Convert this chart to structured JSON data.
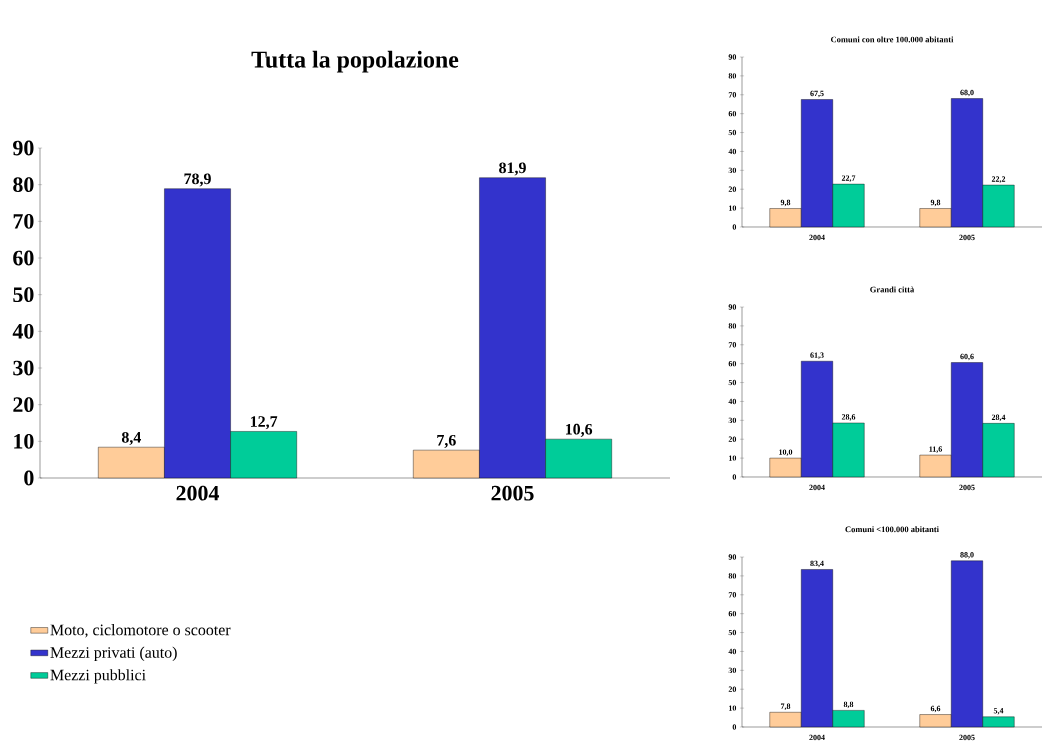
{
  "chart_data": [
    {
      "type": "bar",
      "title": "Tutta la popolazione",
      "categories": [
        "2004",
        "2005"
      ],
      "ylim": [
        0,
        90
      ],
      "yticks": [
        0,
        10,
        20,
        30,
        40,
        50,
        60,
        70,
        80,
        90
      ],
      "legend": "bottom left",
      "series": [
        {
          "name": "Moto, ciclomotore o scooter",
          "color": "#ffcc99",
          "values": [
            8.4,
            7.6
          ],
          "value_labels": [
            "8,4",
            "7,6"
          ]
        },
        {
          "name": "Mezzi privati (auto)",
          "color": "#3333cc",
          "values": [
            78.9,
            81.9
          ],
          "value_labels": [
            "78,9",
            "81,9"
          ]
        },
        {
          "name": "Mezzi pubblici",
          "color": "#00cc99",
          "values": [
            12.7,
            10.6
          ],
          "value_labels": [
            "12,7",
            "10,6"
          ]
        }
      ]
    },
    {
      "type": "bar",
      "title": "Comuni con oltre 100.000 abitanti",
      "categories": [
        "2004",
        "2005"
      ],
      "ylim": [
        0,
        90
      ],
      "yticks": [
        0,
        10,
        20,
        30,
        40,
        50,
        60,
        70,
        80,
        90
      ],
      "series": [
        {
          "color": "#ffcc99",
          "values": [
            9.8,
            9.8
          ],
          "value_labels": [
            "9,8",
            "9,8"
          ]
        },
        {
          "color": "#3333cc",
          "values": [
            67.5,
            68.0
          ],
          "value_labels": [
            "67,5",
            "68,0"
          ]
        },
        {
          "color": "#00cc99",
          "values": [
            22.7,
            22.2
          ],
          "value_labels": [
            "22,7",
            "22,2"
          ]
        }
      ]
    },
    {
      "type": "bar",
      "title": "Grandi città",
      "categories": [
        "2004",
        "2005"
      ],
      "ylim": [
        0,
        90
      ],
      "yticks": [
        0,
        10,
        20,
        30,
        40,
        50,
        60,
        70,
        80,
        90
      ],
      "series": [
        {
          "color": "#ffcc99",
          "values": [
            10.0,
            11.6
          ],
          "value_labels": [
            "10,0",
            "11,6"
          ]
        },
        {
          "color": "#3333cc",
          "values": [
            61.3,
            60.6
          ],
          "value_labels": [
            "61,3",
            "60,6"
          ]
        },
        {
          "color": "#00cc99",
          "values": [
            28.6,
            28.4
          ],
          "value_labels": [
            "28,6",
            "28,4"
          ]
        }
      ]
    },
    {
      "type": "bar",
      "title": "Comuni <100.000 abitanti",
      "categories": [
        "2004",
        "2005"
      ],
      "ylim": [
        0,
        90
      ],
      "yticks": [
        0,
        10,
        20,
        30,
        40,
        50,
        60,
        70,
        80,
        90
      ],
      "series": [
        {
          "color": "#ffcc99",
          "values": [
            7.8,
            6.6
          ],
          "value_labels": [
            "7,8",
            "6,6"
          ]
        },
        {
          "color": "#3333cc",
          "values": [
            83.4,
            88.0
          ],
          "value_labels": [
            "83,4",
            "88,0"
          ]
        },
        {
          "color": "#00cc99",
          "values": [
            8.8,
            5.4
          ],
          "value_labels": [
            "8,8",
            "5,4"
          ]
        }
      ]
    }
  ]
}
